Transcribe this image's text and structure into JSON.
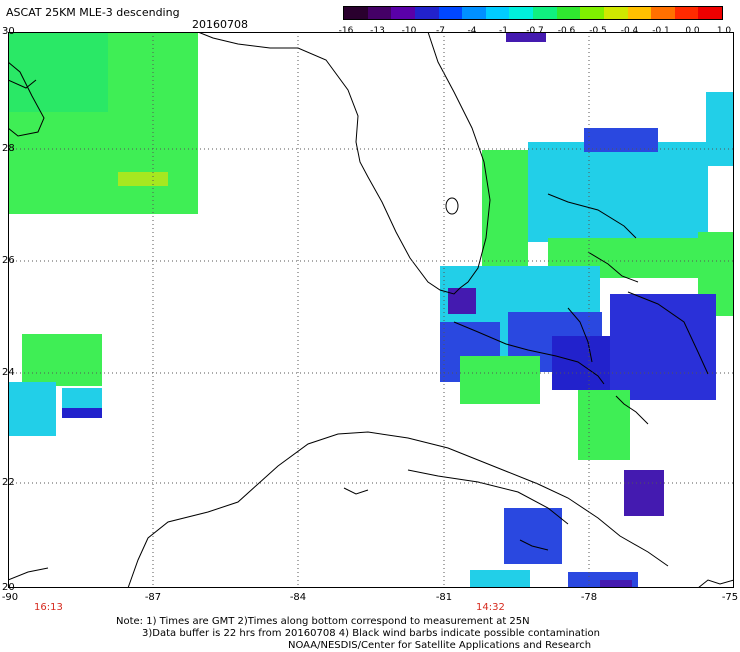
{
  "header": {
    "title": "ASCAT 25KM MLE-3 descending",
    "date": "20160708"
  },
  "colorbar": {
    "ticks": [
      "-16",
      "-13",
      "-10",
      "-7",
      "-4",
      "-1",
      "-0.7",
      "-0.6",
      "-0.5",
      "-0.4",
      "-0.1",
      "0.0",
      "1.0"
    ],
    "colors": [
      "#2a002e",
      "#440066",
      "#5a00a8",
      "#2222cc",
      "#0047ff",
      "#0090ff",
      "#00ccff",
      "#00f0dd",
      "#10f080",
      "#30e830",
      "#80f000",
      "#d0e800",
      "#ffc000",
      "#ff7000",
      "#ff2a00",
      "#ee0000"
    ]
  },
  "axes": {
    "x_labels": [
      "-90",
      "-87",
      "-84",
      "-81",
      "-78",
      "-75"
    ],
    "y_labels": [
      "30",
      "28",
      "26",
      "24",
      "22",
      "20"
    ]
  },
  "times": [
    "16:13",
    "14:32"
  ],
  "notes": {
    "line1": "Note: 1) Times are GMT 2)Times along bottom correspond to measurement at 25N",
    "line2": "3)Data buffer is 22 hrs from 20160708 4) Black wind barbs indicate possible contamination",
    "line3": "NOAA/NESDIS/Center for Satellite Applications and Research"
  }
}
